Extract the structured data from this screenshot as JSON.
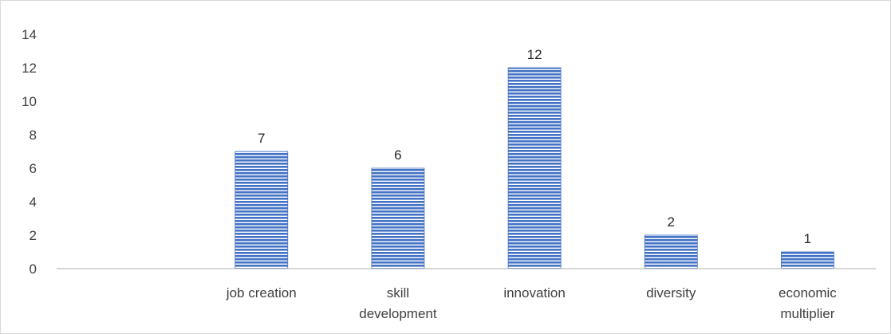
{
  "chart_data": {
    "type": "bar",
    "title": "",
    "xlabel": "",
    "ylabel": "",
    "categories": [
      [
        "",
        ""
      ],
      [
        "job creation"
      ],
      [
        "skill",
        "development"
      ],
      [
        "innovation"
      ],
      [
        "diversity"
      ],
      [
        "economic",
        "multiplier"
      ]
    ],
    "values": [
      null,
      7,
      6,
      12,
      2,
      1
    ],
    "data_labels": [
      "",
      "7",
      "6",
      "12",
      "2",
      "1"
    ],
    "ylim": [
      0,
      14
    ],
    "yticks": [
      0,
      2,
      4,
      6,
      8,
      10,
      12,
      14
    ],
    "grid": false,
    "legend": "none",
    "bar_color": "#4472c4",
    "bar_fill": "horizontal-stripes"
  }
}
